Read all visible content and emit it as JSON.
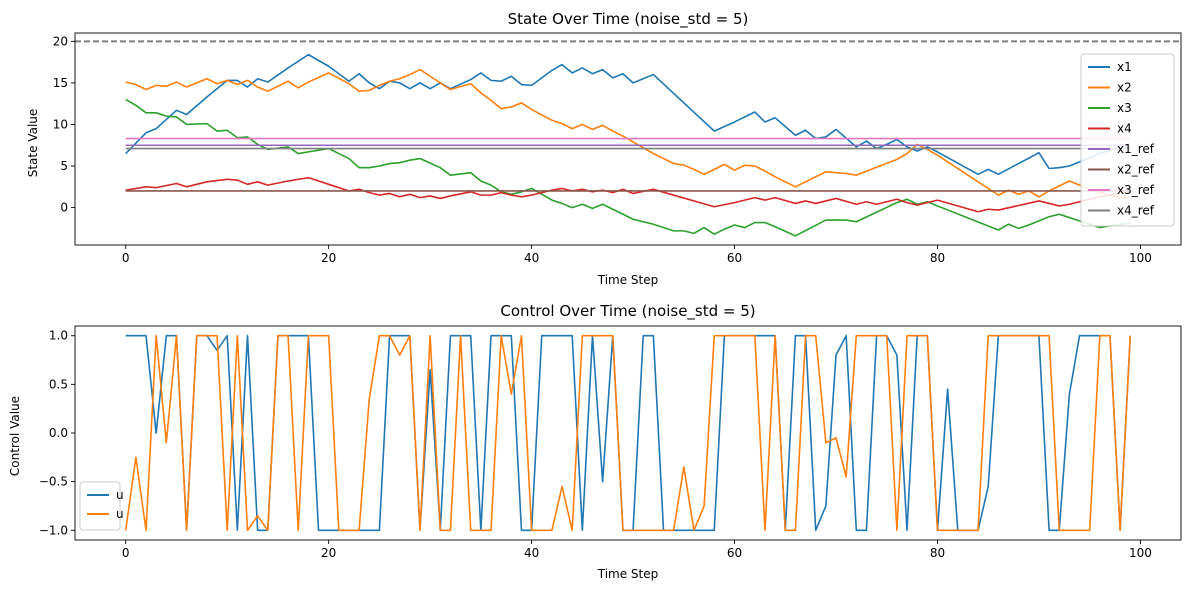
{
  "chart_data": [
    {
      "type": "line",
      "title": "State Over Time (noise_std = 5)",
      "xlabel": "Time Step",
      "ylabel": "State Value",
      "xlim": [
        -5,
        104
      ],
      "ylim": [
        -4.5,
        21
      ],
      "xticks": [
        0,
        20,
        40,
        60,
        80,
        100
      ],
      "yticks": [
        0,
        5,
        10,
        15,
        20
      ],
      "legend_position": "top-right",
      "hline": {
        "y": 20,
        "color": "#808080",
        "style": "dashed"
      },
      "series": [
        {
          "name": "x1",
          "color": "#1f77b4",
          "x": [
            0,
            2,
            3,
            5,
            6,
            8,
            10,
            11,
            12,
            13,
            14,
            16,
            18,
            20,
            22,
            23,
            24,
            25,
            26,
            27,
            28,
            29,
            30,
            31,
            32,
            34,
            35,
            36,
            37,
            38,
            39,
            40,
            42,
            43,
            44,
            45,
            46,
            47,
            48,
            49,
            50,
            52,
            58,
            60,
            62,
            63,
            64,
            66,
            67,
            68,
            69,
            70,
            72,
            73,
            74,
            75,
            76,
            77,
            78,
            79,
            80,
            84,
            85,
            86,
            90,
            91,
            92,
            93,
            94,
            95,
            96,
            97,
            98,
            99
          ],
          "y": [
            6.5,
            9.0,
            9.5,
            11.7,
            11.2,
            13.3,
            15.3,
            15.3,
            14.5,
            15.5,
            15.1,
            16.8,
            18.4,
            17.0,
            15.2,
            16.1,
            15.0,
            14.3,
            15.2,
            15.0,
            14.3,
            15.0,
            14.3,
            15.0,
            14.3,
            15.4,
            16.2,
            15.3,
            15.2,
            15.8,
            14.8,
            14.7,
            16.5,
            17.2,
            16.2,
            16.8,
            16.1,
            16.6,
            15.6,
            16.1,
            15.0,
            16.0,
            9.2,
            10.3,
            11.5,
            10.3,
            10.8,
            8.7,
            9.3,
            8.3,
            8.5,
            9.4,
            7.3,
            8.0,
            7.1,
            7.6,
            8.2,
            7.3,
            6.8,
            7.3,
            6.7,
            4.0,
            4.6,
            4.0,
            6.6,
            4.7,
            4.8,
            5.0,
            5.5,
            6.0,
            6.5,
            6.9,
            7.3,
            7.2
          ]
        },
        {
          "name": "x2",
          "color": "#ff7f0e",
          "x": [
            0,
            1,
            2,
            3,
            4,
            5,
            6,
            8,
            9,
            10,
            11,
            12,
            13,
            14,
            16,
            17,
            18,
            20,
            22,
            23,
            24,
            25,
            26,
            27,
            28,
            29,
            31,
            32,
            34,
            35,
            36,
            37,
            38,
            39,
            40,
            42,
            43,
            44,
            45,
            46,
            47,
            48,
            49,
            50,
            52,
            54,
            55,
            56,
            57,
            58,
            59,
            60,
            61,
            62,
            63,
            64,
            66,
            69,
            70,
            71,
            72,
            76,
            77,
            78,
            79,
            80,
            86,
            87,
            88,
            89,
            90,
            91,
            92,
            93,
            94,
            95,
            96,
            97,
            98,
            99
          ],
          "y": [
            15.1,
            14.8,
            14.2,
            14.7,
            14.6,
            15.1,
            14.5,
            15.5,
            14.9,
            15.3,
            14.8,
            15.3,
            14.5,
            14.0,
            15.2,
            14.4,
            15.1,
            16.2,
            14.9,
            14.0,
            14.1,
            14.7,
            15.2,
            15.5,
            16.0,
            16.6,
            15.0,
            14.2,
            14.9,
            13.8,
            12.9,
            11.9,
            12.1,
            12.6,
            11.8,
            10.5,
            10.1,
            9.5,
            10.0,
            9.4,
            9.9,
            9.2,
            8.6,
            7.9,
            6.5,
            5.3,
            5.1,
            4.6,
            4.0,
            4.6,
            5.2,
            4.5,
            5.1,
            5.0,
            4.4,
            3.7,
            2.5,
            4.3,
            4.2,
            4.1,
            3.9,
            5.8,
            6.5,
            7.6,
            7.0,
            6.3,
            1.5,
            2.1,
            1.6,
            2.0,
            1.3,
            2.0,
            2.6,
            3.2,
            2.7,
            2.2,
            1.8,
            1.5,
            1.2,
            1.3
          ]
        },
        {
          "name": "x3",
          "color": "#2ca02c",
          "x": [
            0,
            1,
            2,
            3,
            4,
            5,
            6,
            8,
            9,
            10,
            11,
            12,
            13,
            14,
            16,
            17,
            18,
            20,
            22,
            23,
            24,
            25,
            26,
            27,
            28,
            29,
            31,
            32,
            34,
            35,
            36,
            37,
            38,
            39,
            40,
            42,
            43,
            44,
            45,
            46,
            47,
            48,
            49,
            50,
            52,
            54,
            55,
            56,
            57,
            58,
            59,
            60,
            61,
            62,
            63,
            64,
            66,
            69,
            70,
            71,
            72,
            76,
            77,
            78,
            79,
            80,
            86,
            87,
            88,
            89,
            90,
            91,
            92,
            93,
            94,
            95,
            96,
            97,
            98,
            99
          ],
          "y": [
            13.0,
            12.3,
            11.4,
            11.4,
            11.0,
            10.9,
            10.0,
            10.1,
            9.2,
            9.3,
            8.4,
            8.5,
            7.6,
            7.0,
            7.3,
            6.5,
            6.7,
            7.1,
            5.9,
            4.8,
            4.8,
            5.0,
            5.3,
            5.4,
            5.7,
            5.9,
            4.8,
            3.9,
            4.2,
            3.2,
            2.7,
            1.9,
            1.6,
            1.9,
            2.3,
            0.9,
            0.5,
            0.0,
            0.4,
            -0.1,
            0.4,
            -0.2,
            -0.8,
            -1.4,
            -2.0,
            -2.8,
            -2.8,
            -3.1,
            -2.4,
            -3.2,
            -2.6,
            -2.1,
            -2.4,
            -1.8,
            -1.8,
            -2.3,
            -3.4,
            -1.5,
            -1.5,
            -1.5,
            -1.7,
            0.6,
            1.0,
            0.4,
            0.7,
            0.2,
            -2.7,
            -2.0,
            -2.5,
            -2.1,
            -1.6,
            -1.1,
            -0.8,
            -1.2,
            -1.6,
            -2.0,
            -2.4,
            -2.2,
            -2.0,
            -1.9
          ]
        },
        {
          "name": "x4",
          "color": "#d62728",
          "x": [
            0,
            2,
            3,
            5,
            6,
            8,
            10,
            11,
            12,
            13,
            14,
            16,
            18,
            20,
            22,
            23,
            24,
            25,
            26,
            27,
            28,
            29,
            30,
            31,
            32,
            34,
            35,
            36,
            37,
            38,
            39,
            40,
            42,
            43,
            44,
            45,
            46,
            47,
            48,
            49,
            50,
            52,
            58,
            60,
            62,
            63,
            64,
            66,
            67,
            68,
            69,
            70,
            72,
            73,
            74,
            75,
            76,
            77,
            78,
            79,
            80,
            84,
            85,
            86,
            90,
            91,
            92,
            93,
            94,
            95,
            96,
            97,
            98,
            99
          ],
          "y": [
            2.1,
            2.5,
            2.4,
            2.9,
            2.5,
            3.1,
            3.4,
            3.3,
            2.8,
            3.1,
            2.7,
            3.2,
            3.6,
            2.8,
            2.0,
            2.2,
            1.8,
            1.5,
            1.7,
            1.3,
            1.6,
            1.2,
            1.4,
            1.1,
            1.4,
            1.9,
            1.5,
            1.5,
            1.8,
            1.5,
            1.3,
            1.5,
            2.1,
            2.3,
            2.0,
            2.2,
            1.9,
            2.1,
            1.8,
            2.2,
            1.7,
            2.2,
            0.1,
            0.6,
            1.2,
            0.9,
            1.2,
            0.5,
            0.8,
            0.5,
            0.8,
            1.1,
            0.4,
            0.7,
            0.4,
            0.7,
            1.0,
            0.6,
            0.3,
            0.6,
            0.9,
            -0.5,
            -0.2,
            -0.3,
            0.8,
            0.5,
            0.2,
            0.4,
            0.7,
            1.0,
            1.3,
            1.5,
            1.7,
            2.0
          ]
        },
        {
          "name": "x1_ref",
          "color": "#9467bd",
          "x": [
            0,
            99
          ],
          "y": [
            7.5,
            7.5
          ]
        },
        {
          "name": "x2_ref",
          "color": "#8c564b",
          "x": [
            0,
            99
          ],
          "y": [
            2.0,
            2.0
          ]
        },
        {
          "name": "x3_ref",
          "color": "#e377c2",
          "x": [
            0,
            99
          ],
          "y": [
            8.3,
            8.3
          ]
        },
        {
          "name": "x4_ref",
          "color": "#7f7f7f",
          "x": [
            0,
            99
          ],
          "y": [
            7.1,
            7.1
          ]
        }
      ]
    },
    {
      "type": "line",
      "title": "Control Over Time (noise_std = 5)",
      "xlabel": "Time Step",
      "ylabel": "Control Value",
      "xlim": [
        -5,
        104
      ],
      "ylim": [
        -1.1,
        1.1
      ],
      "xticks": [
        0,
        20,
        40,
        60,
        80,
        100
      ],
      "yticks": [
        -1.0,
        -0.5,
        0.0,
        0.5,
        1.0
      ],
      "legend_position": "bottom-left",
      "series": [
        {
          "name": "u",
          "color": "#1f77b4",
          "y": [
            1,
            1,
            1,
            0.0,
            1,
            1,
            -1,
            1,
            1,
            0.85,
            1,
            -1,
            1,
            -1,
            -1,
            1,
            1,
            1,
            1,
            -1,
            -1,
            -1,
            -1,
            -1,
            -1,
            -1,
            1,
            1,
            1,
            -1,
            0.65,
            -1,
            1,
            1,
            1,
            -1,
            1,
            1,
            1,
            -1,
            -1,
            1,
            1,
            1,
            1,
            -1,
            1,
            -0.5,
            1,
            -1,
            -1,
            1,
            1,
            -1,
            -1,
            -1,
            -1,
            -1,
            -1,
            1,
            1,
            1,
            1,
            1,
            1,
            -1,
            1,
            1,
            -1,
            -0.75,
            0.8,
            1,
            -1,
            -1,
            1,
            1,
            0.8,
            -1,
            1,
            1,
            -1,
            0.45,
            -1,
            -1,
            -1,
            -0.55,
            1,
            1,
            1,
            1,
            1,
            -1,
            -1,
            0.4,
            1,
            1,
            1,
            1,
            -1,
            1
          ]
        },
        {
          "name": "u",
          "color": "#ff7f0e",
          "y": [
            -1,
            -0.25,
            -1,
            1,
            -0.1,
            1,
            -1,
            1,
            1,
            1,
            -1,
            1,
            -1,
            -0.85,
            -1,
            1,
            1,
            -1,
            1,
            1,
            1,
            -1,
            -1,
            -1,
            0.35,
            1,
            1,
            0.8,
            1,
            -1,
            1,
            -1,
            -1,
            1,
            -1,
            -1,
            -1,
            1,
            0.4,
            1,
            -1,
            -1,
            -1,
            -0.55,
            -1,
            1,
            1,
            1,
            1,
            -1,
            -1,
            -1,
            -1,
            -1,
            -1,
            -0.35,
            -1,
            -0.75,
            1,
            1,
            1,
            1,
            1,
            -1,
            1,
            -1,
            -1,
            1,
            1,
            -0.1,
            -0.05,
            -0.45,
            1,
            1,
            1,
            1,
            -1,
            1,
            1,
            1,
            -1,
            -1,
            -1,
            -1,
            -1,
            1,
            1,
            1,
            1,
            1,
            1,
            1,
            -1,
            -1,
            -1,
            -1,
            1,
            1,
            -1,
            1
          ]
        }
      ]
    }
  ]
}
